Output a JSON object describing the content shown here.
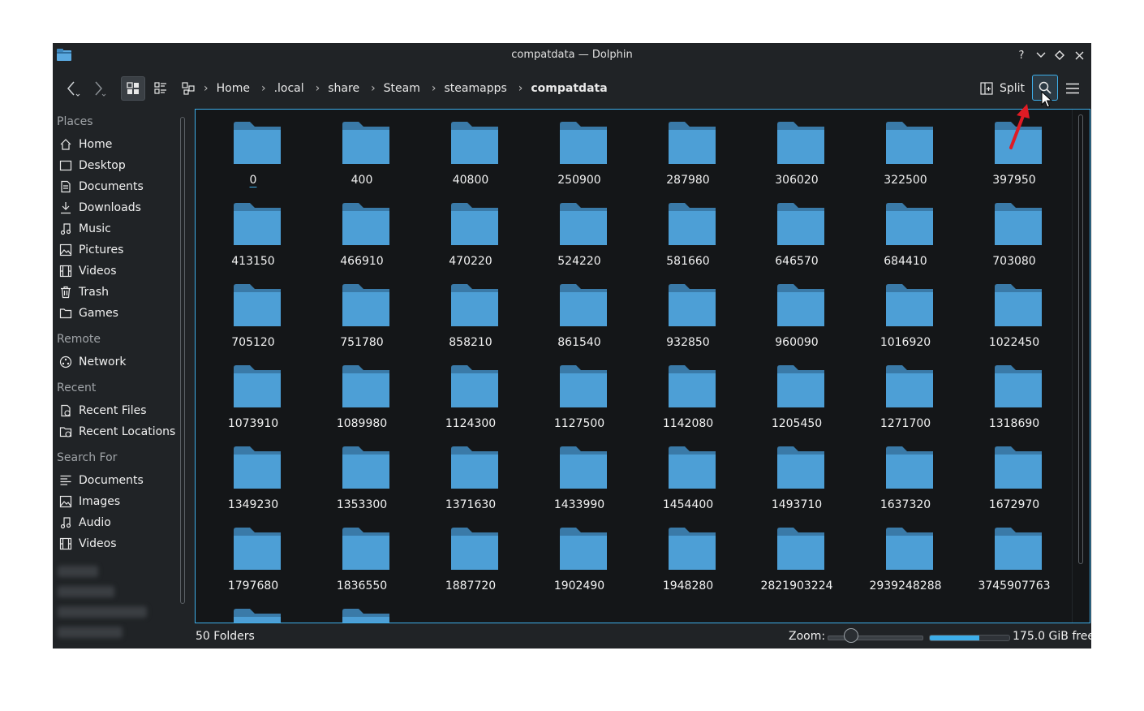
{
  "window": {
    "title": "compatdata — Dolphin"
  },
  "titlebar_buttons": {
    "help": "?",
    "minimize": "⌄",
    "maximize": "◇",
    "close": "✕"
  },
  "toolbar": {
    "back_icon": "‹",
    "forward_icon": "›",
    "split_label": "Split"
  },
  "breadcrumb": [
    "Home",
    ".local",
    "share",
    "Steam",
    "steamapps",
    "compatdata"
  ],
  "sidebar": {
    "places_title": "Places",
    "places": [
      "Home",
      "Desktop",
      "Documents",
      "Downloads",
      "Music",
      "Pictures",
      "Videos",
      "Trash",
      "Games"
    ],
    "remote_title": "Remote",
    "remote": [
      "Network"
    ],
    "recent_title": "Recent",
    "recent": [
      "Recent Files",
      "Recent Locations"
    ],
    "search_title": "Search For",
    "search": [
      "Documents",
      "Images",
      "Audio",
      "Videos"
    ]
  },
  "folders": [
    "0",
    "400",
    "40800",
    "250900",
    "287980",
    "306020",
    "322500",
    "397950",
    "413150",
    "466910",
    "470220",
    "524220",
    "581660",
    "646570",
    "684410",
    "703080",
    "705120",
    "751780",
    "858210",
    "861540",
    "932850",
    "960090",
    "1016920",
    "1022450",
    "1073910",
    "1089980",
    "1124300",
    "1127500",
    "1142080",
    "1205450",
    "1271700",
    "1318690",
    "1349230",
    "1353300",
    "1371630",
    "1433990",
    "1454400",
    "1493710",
    "1637320",
    "1672970",
    "1797680",
    "1836550",
    "1887720",
    "1902490",
    "1948280",
    "2821903224",
    "2939248288",
    "3745907763",
    "",
    ""
  ],
  "status": {
    "count": "50 Folders",
    "zoom_label": "Zoom:",
    "zoom_level": 0.25,
    "free_space": "175.0 GiB free",
    "disk_used_fraction": 0.62
  },
  "colors": {
    "accent": "#3daee9",
    "folder": "#4d9fd6",
    "folder_tab": "#3a7aa8",
    "arrow": "#e01b24"
  }
}
